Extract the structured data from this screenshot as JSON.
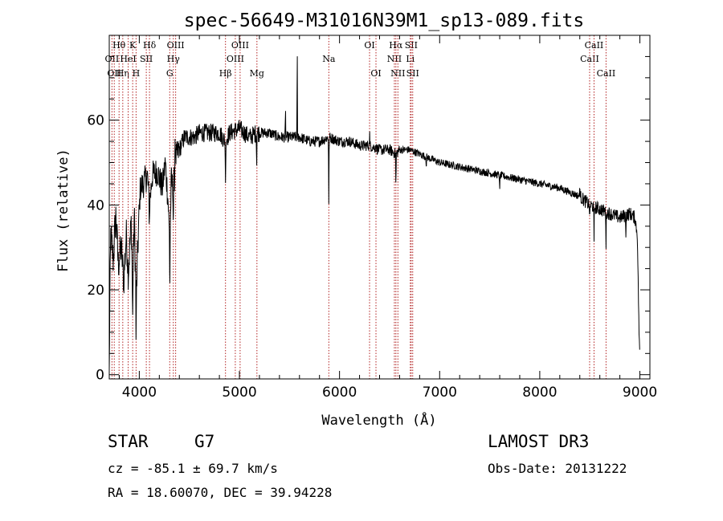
{
  "chart_data": {
    "type": "line",
    "title": "spec-56649-M31016N39M1_sp13-089.fits",
    "xlabel": "Wavelength (Å)",
    "ylabel": "Flux (relative)",
    "xlim": [
      3700,
      9100
    ],
    "ylim": [
      -1,
      80
    ],
    "xticks": [
      4000,
      5000,
      6000,
      7000,
      8000,
      9000
    ],
    "yticks": [
      0,
      20,
      40,
      60
    ],
    "xtick_labels": [
      "4000",
      "5000",
      "6000",
      "7000",
      "8000",
      "9000"
    ],
    "ytick_labels": [
      "0",
      "20",
      "40",
      "60"
    ],
    "spectrum_knots": [
      [
        3700,
        0
      ],
      [
        3705,
        15
      ],
      [
        3715,
        33
      ],
      [
        3740,
        27
      ],
      [
        3765,
        38
      ],
      [
        3790,
        26
      ],
      [
        3820,
        30
      ],
      [
        3845,
        22
      ],
      [
        3870,
        33
      ],
      [
        3890,
        24
      ],
      [
        3920,
        36
      ],
      [
        3935,
        19
      ],
      [
        3950,
        38
      ],
      [
        3968,
        17
      ],
      [
        3990,
        33
      ],
      [
        4010,
        44
      ],
      [
        4040,
        45
      ],
      [
        4080,
        47
      ],
      [
        4101,
        40
      ],
      [
        4130,
        47
      ],
      [
        4180,
        48
      ],
      [
        4230,
        44
      ],
      [
        4260,
        50
      ],
      [
        4290,
        40
      ],
      [
        4305,
        30
      ],
      [
        4320,
        46
      ],
      [
        4340,
        43
      ],
      [
        4365,
        51
      ],
      [
        4400,
        53
      ],
      [
        4450,
        56
      ],
      [
        4500,
        56
      ],
      [
        4550,
        56
      ],
      [
        4600,
        57
      ],
      [
        4700,
        57
      ],
      [
        4800,
        57
      ],
      [
        4861,
        55
      ],
      [
        4900,
        57
      ],
      [
        5000,
        58
      ],
      [
        5100,
        56
      ],
      [
        5172,
        57
      ],
      [
        5300,
        57
      ],
      [
        5400,
        56
      ],
      [
        5500,
        56
      ],
      [
        5600,
        56
      ],
      [
        5700,
        55
      ],
      [
        5800,
        55
      ],
      [
        5893,
        56
      ],
      [
        6000,
        55
      ],
      [
        6100,
        55
      ],
      [
        6200,
        54
      ],
      [
        6300,
        54
      ],
      [
        6400,
        53
      ],
      [
        6500,
        53
      ],
      [
        6563,
        52
      ],
      [
        6600,
        53
      ],
      [
        6700,
        53
      ],
      [
        6800,
        52
      ],
      [
        6900,
        51
      ],
      [
        7000,
        50
      ],
      [
        7200,
        49
      ],
      [
        7400,
        48
      ],
      [
        7600,
        47
      ],
      [
        7800,
        46
      ],
      [
        8000,
        45
      ],
      [
        8200,
        44
      ],
      [
        8400,
        42
      ],
      [
        8500,
        40
      ],
      [
        8600,
        39
      ],
      [
        8700,
        38
      ],
      [
        8800,
        37
      ],
      [
        8900,
        38
      ],
      [
        8950,
        37
      ],
      [
        8975,
        33
      ],
      [
        8990,
        12
      ],
      [
        9000,
        3
      ]
    ],
    "absorption_features": [
      [
        3933,
        10
      ],
      [
        3968,
        12
      ],
      [
        4101,
        5
      ],
      [
        4305,
        12
      ],
      [
        4340,
        8
      ],
      [
        4861,
        11
      ],
      [
        5172,
        8
      ],
      [
        5893,
        16
      ],
      [
        6563,
        9
      ],
      [
        6867,
        3
      ],
      [
        7600,
        4
      ],
      [
        8498,
        5
      ],
      [
        8542,
        9
      ],
      [
        8662,
        8
      ],
      [
        8860,
        4
      ]
    ],
    "emission_features": [
      [
        4358,
        12
      ],
      [
        5460,
        8
      ],
      [
        5577,
        27
      ],
      [
        6300,
        4
      ],
      [
        6363,
        2
      ],
      [
        8400,
        5
      ]
    ],
    "reference_lines": [
      {
        "wavelength": 3727,
        "label": "OII",
        "row": 2
      },
      {
        "wavelength": 3750,
        "label": "OII",
        "row": 3
      },
      {
        "wavelength": 3798,
        "label": "Hθ",
        "row": 1
      },
      {
        "wavelength": 3835,
        "label": "Hη",
        "row": 3
      },
      {
        "wavelength": 3889,
        "label": "HeI",
        "row": 2
      },
      {
        "wavelength": 3934,
        "label": "K",
        "row": 1
      },
      {
        "wavelength": 3968,
        "label": "H",
        "row": 3
      },
      {
        "wavelength": 4070,
        "label": "SII",
        "row": 2
      },
      {
        "wavelength": 4102,
        "label": "Hδ",
        "row": 1
      },
      {
        "wavelength": 4304,
        "label": "G",
        "row": 3
      },
      {
        "wavelength": 4340,
        "label": "Hγ",
        "row": 2
      },
      {
        "wavelength": 4363,
        "label": "OIII",
        "row": 1
      },
      {
        "wavelength": 4861,
        "label": "Hβ",
        "row": 3
      },
      {
        "wavelength": 4959,
        "label": "OIII",
        "row": 2
      },
      {
        "wavelength": 5007,
        "label": "OIII",
        "row": 1
      },
      {
        "wavelength": 5175,
        "label": "Mg",
        "row": 3
      },
      {
        "wavelength": 5893,
        "label": "Na",
        "row": 2
      },
      {
        "wavelength": 6300,
        "label": "OI",
        "row": 1
      },
      {
        "wavelength": 6364,
        "label": "OI",
        "row": 3
      },
      {
        "wavelength": 6548,
        "label": "NII",
        "row": 2
      },
      {
        "wavelength": 6563,
        "label": "Hα",
        "row": 1
      },
      {
        "wavelength": 6583,
        "label": "NII",
        "row": 3
      },
      {
        "wavelength": 6707,
        "label": "Li",
        "row": 2
      },
      {
        "wavelength": 6716,
        "label": "SII",
        "row": 1
      },
      {
        "wavelength": 6731,
        "label": "SII",
        "row": 3
      },
      {
        "wavelength": 8498,
        "label": "CaII",
        "row": 2
      },
      {
        "wavelength": 8542,
        "label": "CaII",
        "row": 1
      },
      {
        "wavelength": 8662,
        "label": "CaII",
        "row": 3
      }
    ],
    "colors": {
      "spectrum": "#000000",
      "reference_line": "#b22222",
      "frame": "#000000"
    }
  },
  "info": {
    "object_class": "STAR",
    "subclass": "G7",
    "survey": "LAMOST DR3",
    "redshift": "cz = -85.1 ± 69.7 km/s",
    "obs_date": "Obs-Date: 20131222",
    "coordinates": "RA =  18.60070, DEC =  39.94228"
  }
}
